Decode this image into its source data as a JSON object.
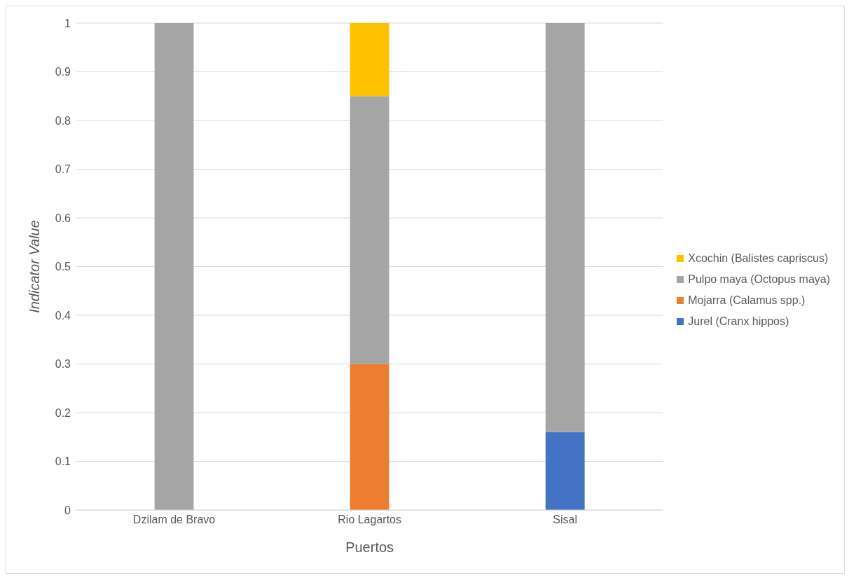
{
  "chart_data": {
    "type": "bar",
    "stacked": true,
    "xlabel": "Puertos",
    "ylabel": "Indicator Value",
    "categories": [
      "Dzilam de Bravo",
      "Rio Lagartos",
      "Sisal"
    ],
    "series": [
      {
        "name": "Jurel (Cranx hippos)",
        "color": "#4472c4",
        "values": [
          0,
          0,
          0.16
        ]
      },
      {
        "name": "Mojarra (Calamus spp.)",
        "color": "#ed7d31",
        "values": [
          0,
          0.3,
          0
        ]
      },
      {
        "name": "Pulpo maya (Octopus maya)",
        "color": "#a5a5a5",
        "values": [
          1,
          0.55,
          0.84
        ]
      },
      {
        "name": "Xcochin (Balistes capriscus)",
        "color": "#ffc000",
        "values": [
          0,
          0.15,
          0
        ]
      }
    ],
    "ylim": [
      0,
      1
    ],
    "yticks": [
      0,
      0.1,
      0.2,
      0.3,
      0.4,
      0.5,
      0.6,
      0.7,
      0.8,
      0.9,
      1
    ],
    "grid": "y",
    "legend": "right"
  }
}
